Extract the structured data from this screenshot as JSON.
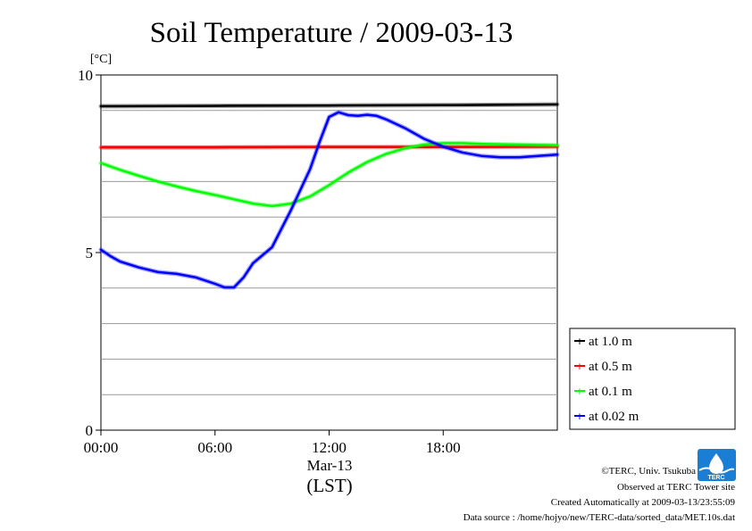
{
  "chart_data": {
    "type": "line",
    "title": "Soil Temperature / 2009-03-13",
    "ylabel": "[°C]",
    "ylim": [
      0,
      10
    ],
    "yticks": [
      0,
      5,
      10
    ],
    "y_minor_step": 1,
    "xlim_hours": [
      0,
      24
    ],
    "xticks": [
      {
        "hour": 0,
        "label": "00:00"
      },
      {
        "hour": 6,
        "label": "06:00"
      },
      {
        "hour": 12,
        "label": "12:00"
      },
      {
        "hour": 18,
        "label": "18:00"
      }
    ],
    "x_date_label": "Mar-13",
    "x_zone_label": "(LST)",
    "grid": true,
    "legend_position": "right",
    "series": [
      {
        "name": "at 1.0 m",
        "color": "#000000",
        "x": [
          0,
          6,
          12,
          18,
          24
        ],
        "y": [
          9.12,
          9.13,
          9.14,
          9.15,
          9.17
        ]
      },
      {
        "name": "at 0.5 m",
        "color": "#ff0000",
        "x": [
          0,
          6,
          12,
          18,
          24
        ],
        "y": [
          7.96,
          7.96,
          7.97,
          7.97,
          7.98
        ]
      },
      {
        "name": "at 0.1 m",
        "color": "#00ff00",
        "x": [
          0,
          1,
          2,
          3,
          4,
          5,
          6,
          7,
          8,
          9,
          10,
          11,
          12,
          13,
          14,
          15,
          16,
          17,
          18,
          19,
          20,
          21,
          22,
          23,
          24
        ],
        "y": [
          7.52,
          7.33,
          7.16,
          7.0,
          6.86,
          6.73,
          6.62,
          6.5,
          6.38,
          6.31,
          6.38,
          6.58,
          6.9,
          7.25,
          7.55,
          7.78,
          7.94,
          8.04,
          8.08,
          8.08,
          8.06,
          8.05,
          8.04,
          8.03,
          8.02
        ]
      },
      {
        "name": "at 0.02 m",
        "color": "#0000ff",
        "x": [
          0,
          0.5,
          1,
          2,
          3,
          4,
          5,
          6,
          6.5,
          7,
          7.5,
          8,
          9,
          10,
          11,
          11.5,
          12,
          12.5,
          13,
          13.5,
          14,
          14.5,
          15,
          16,
          17,
          18,
          19,
          20,
          21,
          22,
          23,
          24
        ],
        "y": [
          5.08,
          4.9,
          4.75,
          4.58,
          4.45,
          4.4,
          4.3,
          4.12,
          4.02,
          4.02,
          4.3,
          4.7,
          5.15,
          6.2,
          7.35,
          8.12,
          8.82,
          8.95,
          8.87,
          8.85,
          8.88,
          8.85,
          8.75,
          8.5,
          8.2,
          7.98,
          7.82,
          7.72,
          7.68,
          7.68,
          7.72,
          7.76
        ]
      }
    ]
  },
  "credits": {
    "copyright": "©TERC, Univ. Tsukuba",
    "observed": "Observed at TERC Tower site",
    "created": "Created Automatically at 2009-03-13/23:55:09",
    "source": "Data source : /home/hojyo/new/TERC-data/sorted_data/MET.10s.dat",
    "logo_text": "TERC",
    "logo_color": "#1a7fd4"
  }
}
